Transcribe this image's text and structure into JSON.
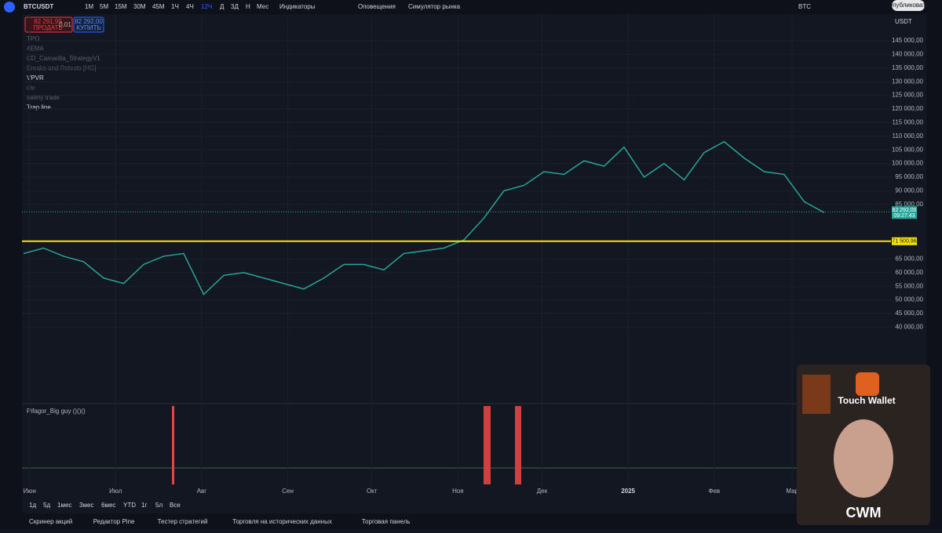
{
  "toolbar": {
    "symbol": "BTCUSDT",
    "timeframes": [
      "1М",
      "5М",
      "15М",
      "30М",
      "45М",
      "1Ч",
      "4Ч",
      "12Ч",
      "Д",
      "3Д",
      "Н",
      "Мес"
    ],
    "indicators": "Индикаторы",
    "alerts": "Оповещения",
    "simulator": "Симулятор рынка",
    "ticker": "BTC",
    "publish": "Опубликовать"
  },
  "trade": {
    "sell_price": "82 291,99",
    "sell": "ПРОДАТЬ",
    "spread": "0,01",
    "buy_price": "82 292,00",
    "buy": "КУПИТЬ"
  },
  "indicator_list": [
    "TPO",
    "4EMA",
    "CD_Camarilla_StrategyV1",
    "Breaks and Retests [HG]",
    "VPVR",
    "div",
    "safety trade",
    "Trap line"
  ],
  "oscillator": "Pifagor_Big guy ()()()",
  "currency": "USDT",
  "chart_data": {
    "type": "line",
    "color": "#26a69a",
    "values": [
      67000,
      69000,
      66000,
      64000,
      58000,
      56000,
      63000,
      66000,
      67000,
      52000,
      59000,
      60000,
      58000,
      56000,
      54000,
      58000,
      63000,
      63000,
      61000,
      67000,
      68000,
      69000,
      72000,
      80000,
      90000,
      92000,
      97000,
      96000,
      101000,
      99000,
      106000,
      95000,
      100000,
      94000,
      104000,
      108000,
      102000,
      97000,
      96000,
      86000,
      82000
    ],
    "xlim": [
      0,
      40
    ],
    "xticks": [
      {
        "value": 0.3,
        "label": "Июн"
      },
      {
        "value": 4.6,
        "label": "Июл"
      },
      {
        "value": 8.9,
        "label": "Авг"
      },
      {
        "value": 13.2,
        "label": "Сен"
      },
      {
        "value": 17.4,
        "label": "Окт"
      },
      {
        "value": 21.7,
        "label": "Ноя"
      },
      {
        "value": 25.9,
        "label": "Дек"
      },
      {
        "value": 30.2,
        "label": "2025"
      },
      {
        "value": 34.5,
        "label": "Фев"
      },
      {
        "value": 38.4,
        "label": "Мар"
      }
    ],
    "ylim": [
      35000,
      150000
    ],
    "yticks": [
      {
        "value": 145000,
        "label": "145 000,00"
      },
      {
        "value": 140000,
        "label": "140 000,00"
      },
      {
        "value": 135000,
        "label": "135 000,00"
      },
      {
        "value": 130000,
        "label": "130 000,00"
      },
      {
        "value": 125000,
        "label": "125 000,00"
      },
      {
        "value": 120000,
        "label": "120 000,00"
      },
      {
        "value": 115000,
        "label": "115 000,00"
      },
      {
        "value": 110000,
        "label": "110 000,00"
      },
      {
        "value": 105000,
        "label": "105 000,00"
      },
      {
        "value": 100000,
        "label": "100 000,00"
      },
      {
        "value": 95000,
        "label": "95 000,00"
      },
      {
        "value": 90000,
        "label": "90 000,00"
      },
      {
        "value": 85000,
        "label": "85 000,00"
      },
      {
        "value": 65000,
        "label": "65 000,00"
      },
      {
        "value": 60000,
        "label": "60 000,00"
      },
      {
        "value": 55000,
        "label": "55 000,00"
      },
      {
        "value": 50000,
        "label": "50 000,00"
      },
      {
        "value": 45000,
        "label": "45 000,00"
      },
      {
        "value": 40000,
        "label": "40 000,00"
      }
    ],
    "level": {
      "value": 71500.96,
      "label": "71 500,96",
      "color": "#f5e400"
    },
    "last_price": {
      "value": 82292,
      "label": "82 292,00",
      "countdown": "09:27:43",
      "color": "#26a69a"
    }
  },
  "ranges": [
    "1д",
    "5д",
    "1мес",
    "3мес",
    "6мес",
    "YTD",
    "1г",
    "5л",
    "Все"
  ],
  "tabs": [
    "Скринер акций",
    "Редактор Pine",
    "Тестер стратегий",
    "Торговля на исторических данных",
    "Торговая панель"
  ],
  "overlay": {
    "brand": "Touch Wallet",
    "logo": "CWM"
  }
}
